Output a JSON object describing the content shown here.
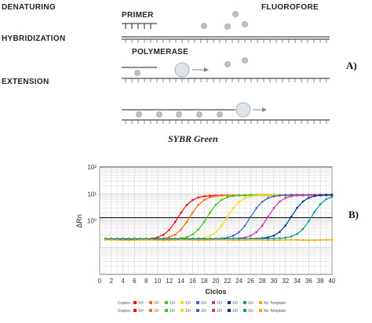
{
  "panel_a": {
    "labels": {
      "denaturing": "DENATURING",
      "hybridization": "HYBRIDIZATION",
      "extension": "EXTENSION",
      "primer": "PRIMER",
      "fluorofore": "FLUOROFORE",
      "polymerase": "POLYMERASE"
    },
    "panel_label": "A)",
    "caption": "SYBR Green",
    "colors": {
      "strand": "#4a4a4a",
      "dye": "#9aa8b8",
      "polymerase": "#cfd6dc"
    }
  },
  "panel_b": {
    "panel_label": "B)",
    "legend": {
      "prefix": "Copies",
      "entries": [
        {
          "label": "10⁸",
          "color": "#ff0000"
        },
        {
          "label": "10⁷",
          "color": "#ff6600"
        },
        {
          "label": "10⁶",
          "color": "#33cc00"
        },
        {
          "label": "10⁵",
          "color": "#ffdd00"
        },
        {
          "label": "10⁴",
          "color": "#3366cc"
        },
        {
          "label": "10³",
          "color": "#cc33aa"
        },
        {
          "label": "10²",
          "color": "#003399"
        },
        {
          "label": "10¹",
          "color": "#009999"
        },
        {
          "label": "No Template",
          "color": "#ffaa00"
        }
      ]
    }
  },
  "chart_data": {
    "type": "line",
    "title": "",
    "xlabel": "Ciclos",
    "ylabel": "ΔRn",
    "xlim": [
      0,
      40
    ],
    "ylim_log10": [
      -2,
      2
    ],
    "yscale": "log",
    "x_ticks": [
      "0",
      "2",
      "4",
      "6",
      "8",
      "10",
      "12",
      "14",
      "16",
      "18",
      "20",
      "22",
      "24",
      "26",
      "28",
      "30",
      "32",
      "34",
      "36",
      "38",
      "40"
    ],
    "y_ticks": [
      {
        "value": 100,
        "label": "10²"
      },
      {
        "value": 10,
        "label": "10¹"
      },
      {
        "value": 1,
        "label": "10⁰"
      }
    ],
    "threshold": 1.3,
    "baseline": 0.2,
    "plateau": 8.8,
    "grid": true,
    "series": [
      {
        "name": "10⁸",
        "color": "#ff0000",
        "midpoint": 13.5
      },
      {
        "name": "10⁷",
        "color": "#ff6600",
        "midpoint": 15.5
      },
      {
        "name": "10⁶",
        "color": "#33cc00",
        "midpoint": 18.5
      },
      {
        "name": "10⁵",
        "color": "#ffdd00",
        "midpoint": 22
      },
      {
        "name": "10⁴",
        "color": "#3366cc",
        "midpoint": 26
      },
      {
        "name": "10³",
        "color": "#cc33aa",
        "midpoint": 29
      },
      {
        "name": "10²",
        "color": "#003399",
        "midpoint": 33
      },
      {
        "name": "10¹",
        "color": "#009999",
        "midpoint": 36.5
      },
      {
        "name": "No Template",
        "color": "#ffaa00",
        "flat": true
      }
    ]
  }
}
